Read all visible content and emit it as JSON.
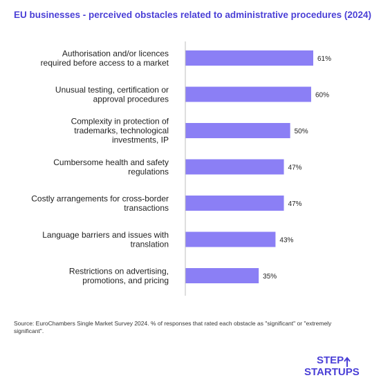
{
  "chart_data": {
    "type": "bar",
    "orientation": "horizontal",
    "title": "EU businesses - perceived obstacles related to administrative procedures (2024)",
    "categories": [
      [
        "Authorisation and/or licences",
        "required before access to a market"
      ],
      [
        "Unusual testing, certification or",
        "approval procedures"
      ],
      [
        "Complexity in protection of",
        "trademarks, technological",
        "investments, IP"
      ],
      [
        "Cumbersome health and safety",
        "regulations"
      ],
      [
        "Costly arrangements for cross-border",
        "transactions"
      ],
      [
        "Language barriers and issues with",
        "translation"
      ],
      [
        "Restrictions on advertising,",
        "promotions, and pricing"
      ]
    ],
    "values": [
      61,
      60,
      50,
      47,
      47,
      43,
      35
    ],
    "value_labels": [
      "61%",
      "60%",
      "50%",
      "47%",
      "47%",
      "43%",
      "35%"
    ],
    "unit": "%",
    "xlim": [
      0,
      61
    ],
    "grid": false,
    "bar_color": "#8b7ff5"
  },
  "footnote": "Source: EuroChambers Single Market Survey 2024. % of responses that rated each obstacle as \"significant\" or \"extremely significant\".",
  "logo": {
    "line1": "STEP",
    "line2": "STARTUPS",
    "color": "#4a3fd6"
  },
  "colors": {
    "title": "#4a3fd6",
    "bar": "#8b7ff5",
    "axis": "#bdbdbd",
    "text": "#222222"
  }
}
